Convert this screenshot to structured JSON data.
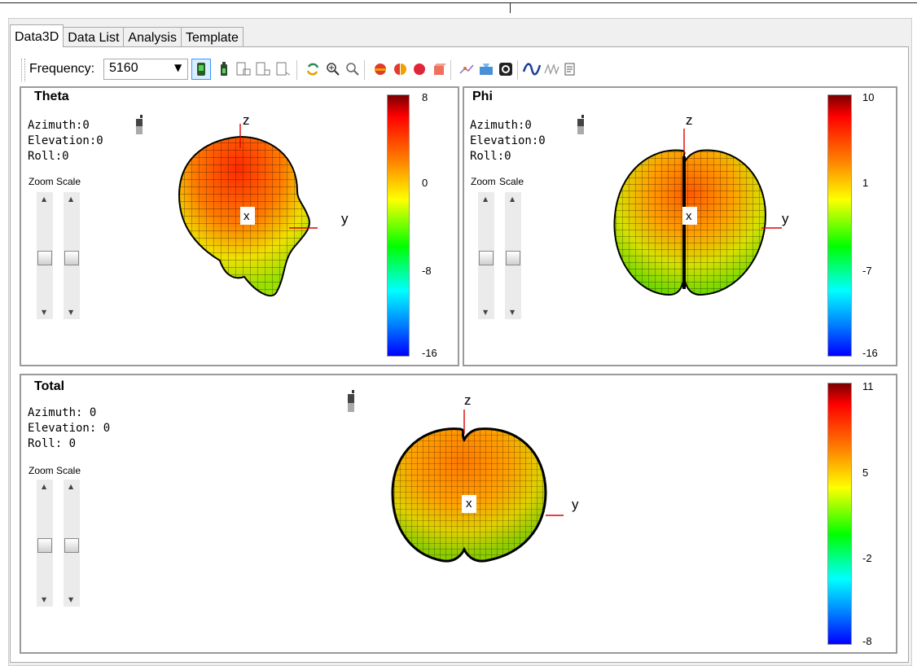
{
  "tabs": [
    {
      "label": "Data3D",
      "active": true
    },
    {
      "label": "Data List",
      "active": false
    },
    {
      "label": "Analysis",
      "active": false
    },
    {
      "label": "Template",
      "active": false
    }
  ],
  "toolbar": {
    "frequency_label": "Frequency:",
    "frequency_value": "5160",
    "icons": [
      "device-icon",
      "battery-icon",
      "device-rotate-icon",
      "device-side-icon",
      "device-back-icon",
      "refresh-icon",
      "zoom-in-icon",
      "zoom-out-icon",
      "pattern-cut-icon",
      "pattern-half-icon",
      "sphere-icon",
      "cube-icon",
      "scatter-icon",
      "export-icon",
      "circle-icon",
      "wave-icon",
      "multi-wave-icon",
      "report-icon"
    ]
  },
  "panels": {
    "theta": {
      "title": "Theta",
      "orientation": "Azimuth:0\nElevation:0\nRoll:0",
      "zoom_label": "Zoom",
      "scale_label": "Scale",
      "axis_z": "z",
      "axis_y": "y",
      "axis_x": "x",
      "colorbar": [
        "8",
        "0",
        "-8",
        "-16"
      ]
    },
    "phi": {
      "title": "Phi",
      "orientation": "Azimuth:0\nElevation:0\nRoll:0",
      "zoom_label": "Zoom",
      "scale_label": "Scale",
      "axis_z": "z",
      "axis_y": "y",
      "axis_x": "x",
      "colorbar": [
        "10",
        "1",
        "-7",
        "-16"
      ]
    },
    "total": {
      "title": "Total",
      "orientation": "Azimuth: 0\nElevation: 0\nRoll: 0",
      "zoom_label": "Zoom",
      "scale_label": "Scale",
      "axis_z": "z",
      "axis_y": "y",
      "axis_x": "x",
      "colorbar": [
        "11",
        "5",
        "-2",
        "-8"
      ]
    }
  },
  "colors": {
    "accent": "#ff0000",
    "panel_border": "#9a9a9a",
    "tab_border": "#a9a9a9"
  }
}
